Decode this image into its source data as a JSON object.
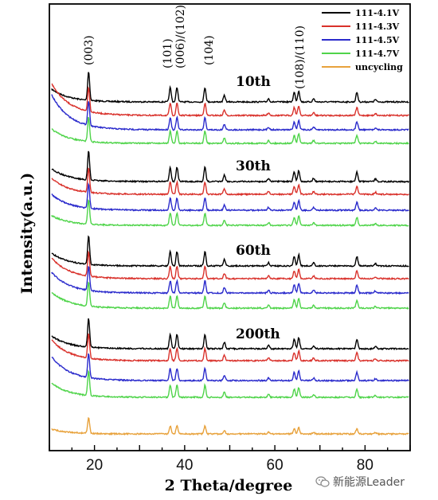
{
  "chart_data": {
    "type": "line",
    "xlabel": "2 Theta/degree",
    "ylabel": "Intensity(a.u.)",
    "xlim": [
      10,
      90
    ],
    "xticks": [
      20,
      40,
      60,
      80
    ],
    "y_ticks_shown": false,
    "grid": false,
    "legend_position": "top-right",
    "legend": [
      {
        "name": "111-4.1V",
        "color": "#000000"
      },
      {
        "name": "111-4.3V",
        "color": "#d9312b"
      },
      {
        "name": "111-4.5V",
        "color": "#2b2bcc"
      },
      {
        "name": "111-4.7V",
        "color": "#4fd44a"
      },
      {
        "name": "uncycling",
        "color": "#e8a23c"
      }
    ],
    "peak_annotations": [
      {
        "label": "(003)",
        "x": 18.7
      },
      {
        "label": "(101)",
        "x": 36.8
      },
      {
        "label": "(006)/(102)",
        "x": 38.6
      },
      {
        "label": "(104)",
        "x": 44.5
      },
      {
        "label": "(108)/(110)",
        "x": 64.6
      }
    ],
    "groups": [
      {
        "label": "10th"
      },
      {
        "label": "30th"
      },
      {
        "label": "60th"
      },
      {
        "label": "200th"
      }
    ],
    "peak_positions": [
      18.7,
      36.8,
      38.3,
      44.5,
      48.8,
      58.6,
      64.3,
      65.3,
      68.6,
      78.2,
      82.3
    ]
  },
  "watermark": {
    "text": "新能源Leader",
    "icon": "wechat-icon"
  }
}
